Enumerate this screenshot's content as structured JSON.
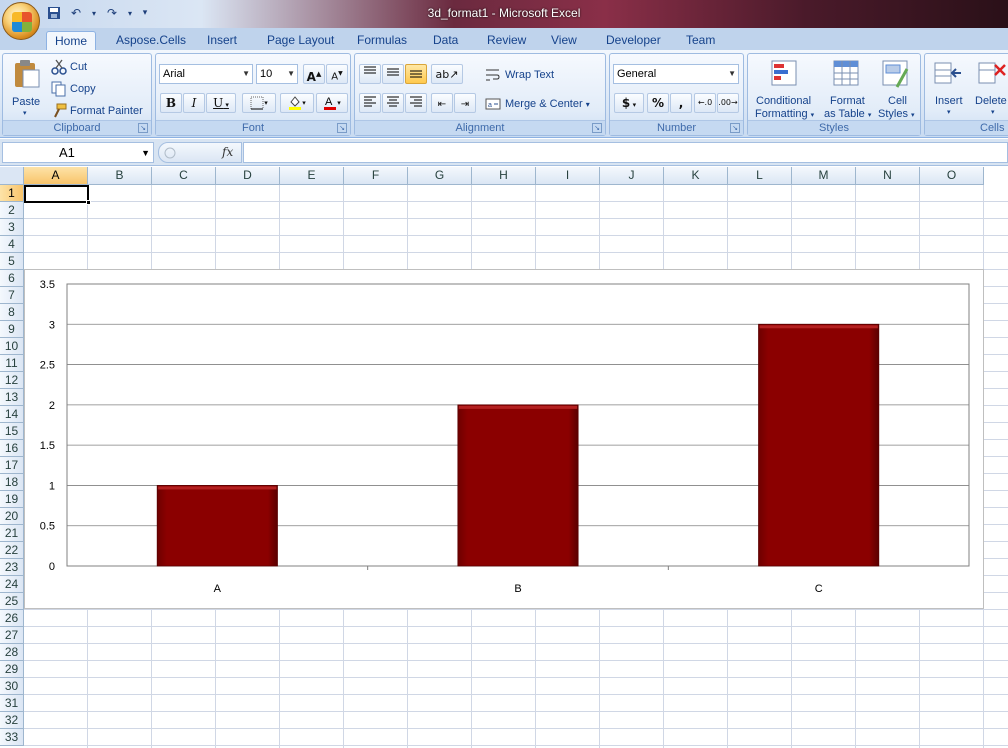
{
  "window": {
    "title": "3d_format1 - Microsoft Excel"
  },
  "quick_access": {
    "icons": [
      "save-icon",
      "undo-icon",
      "redo-icon",
      "customize-icon"
    ]
  },
  "tabs": [
    {
      "label": "Home",
      "active": true
    },
    {
      "label": "Aspose.Cells"
    },
    {
      "label": "Insert"
    },
    {
      "label": "Page Layout"
    },
    {
      "label": "Formulas"
    },
    {
      "label": "Data"
    },
    {
      "label": "Review"
    },
    {
      "label": "View"
    },
    {
      "label": "Developer"
    },
    {
      "label": "Team"
    }
  ],
  "ribbon": {
    "clipboard": {
      "group_label": "Clipboard",
      "paste": "Paste",
      "cut": "Cut",
      "copy": "Copy",
      "format_painter": "Format Painter"
    },
    "font": {
      "group_label": "Font",
      "font_name": "Arial",
      "font_size": "10",
      "bold": "B",
      "italic": "I",
      "underline": "U",
      "grow": "A",
      "shrink": "A"
    },
    "alignment": {
      "group_label": "Alignment",
      "wrap_text": "Wrap Text",
      "merge_center": "Merge & Center"
    },
    "number": {
      "group_label": "Number",
      "format": "General",
      "currency": "$",
      "percent": "%",
      "comma": ","
    },
    "styles": {
      "group_label": "Styles",
      "conditional_formatting_1": "Conditional",
      "conditional_formatting_2": "Formatting",
      "format_as_table_1": "Format",
      "format_as_table_2": "as Table",
      "cell_styles_1": "Cell",
      "cell_styles_2": "Styles"
    },
    "cells": {
      "group_label": "Cells",
      "insert": "Insert",
      "delete": "Delete"
    }
  },
  "formula_bar": {
    "name_box": "A1",
    "fx": "fx",
    "formula": ""
  },
  "sheet": {
    "columns": [
      "A",
      "B",
      "C",
      "D",
      "E",
      "F",
      "G",
      "H",
      "I",
      "J",
      "K",
      "L",
      "M",
      "N",
      "O"
    ],
    "rows": [
      "1",
      "2",
      "3",
      "4",
      "5",
      "6",
      "7",
      "8",
      "9",
      "10",
      "11",
      "12",
      "13",
      "14",
      "15",
      "16",
      "17",
      "18",
      "19",
      "20",
      "21",
      "22",
      "23",
      "24",
      "25",
      "26",
      "27",
      "28",
      "29",
      "30",
      "31",
      "32",
      "33"
    ],
    "selected_column": "A",
    "selected_row": "1"
  },
  "chart_data": {
    "type": "bar",
    "categories": [
      "A",
      "B",
      "C"
    ],
    "values": [
      1,
      2,
      3
    ],
    "ylim": [
      0,
      3.5
    ],
    "y_ticks": [
      "0",
      "0.5",
      "1",
      "1.5",
      "2",
      "2.5",
      "3",
      "3.5"
    ],
    "grid": true,
    "bar_color": "#8b0000",
    "style": "3d-bevel"
  }
}
